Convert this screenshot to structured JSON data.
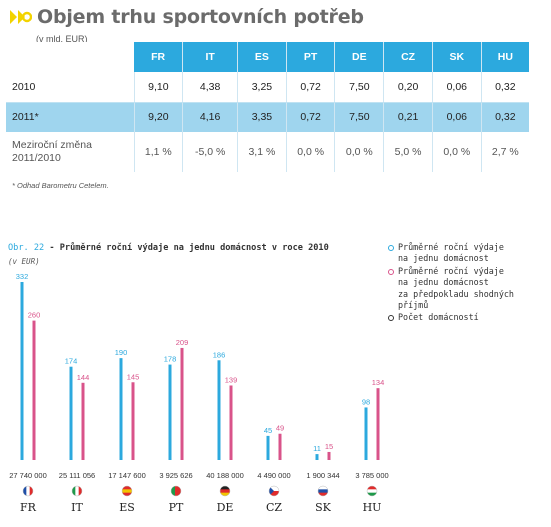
{
  "header": {
    "title": "Objem trhu sportovních potřeb",
    "unit": "(v mld. EUR)"
  },
  "colors": {
    "accent": "#2ca9de",
    "accent_light": "#9fd5ee",
    "pink": "#d9538a",
    "logo": "#f2d300"
  },
  "table": {
    "columns": [
      "FR",
      "IT",
      "ES",
      "PT",
      "DE",
      "CZ",
      "SK",
      "HU"
    ],
    "rows": [
      {
        "label": "2010",
        "values": [
          "9,10",
          "4,38",
          "3,25",
          "0,72",
          "7,50",
          "0,20",
          "0,06",
          "0,32"
        ]
      },
      {
        "label": "2011*",
        "values": [
          "9,20",
          "4,16",
          "3,35",
          "0,72",
          "7,50",
          "0,21",
          "0,06",
          "0,32"
        ]
      },
      {
        "label_line1": "Meziroční změna",
        "label_line2": "2011/2010",
        "values": [
          "1,1 %",
          "-5,0 %",
          "3,1 %",
          "0,0 %",
          "0,0 %",
          "5,0 %",
          "0,0 %",
          "2,7 %"
        ]
      }
    ]
  },
  "footnote": "* Odhad Barometru Cetelem.",
  "chart_title": {
    "prefix": "Obr. 22",
    "text": " - Průměrné roční výdaje na jednu domácnost v roce 2010"
  },
  "chart_unit": "(v EUR)",
  "legend": {
    "item1": [
      "Průměrné roční výdaje",
      "na jednu domácnost"
    ],
    "item2": [
      "Průměrné roční výdaje",
      "na jednu domácnost",
      "za předpokladu shodných",
      "příjmů"
    ],
    "item3": [
      "Počet domácností"
    ]
  },
  "chart_data": {
    "type": "bar",
    "categories": [
      "FR",
      "IT",
      "ES",
      "PT",
      "DE",
      "CZ",
      "SK",
      "HU"
    ],
    "series": [
      {
        "name": "Průměrné roční výdaje na jednu domácnost",
        "values": [
          332,
          174,
          190,
          178,
          186,
          45,
          11,
          98
        ],
        "color": "#2ca9de"
      },
      {
        "name": "Průměrné roční výdaje na jednu domácnost za předpokladu shodných příjmů",
        "values": [
          260,
          144,
          145,
          209,
          139,
          49,
          15,
          134
        ],
        "color": "#d9538a"
      }
    ],
    "households": [
      "27 740 000",
      "25 111 056",
      "17 147 600",
      "3 925 626",
      "40 188 000",
      "4 490 000",
      "1 900 344",
      "3 785 000"
    ],
    "ylim": [
      0,
      332
    ]
  }
}
